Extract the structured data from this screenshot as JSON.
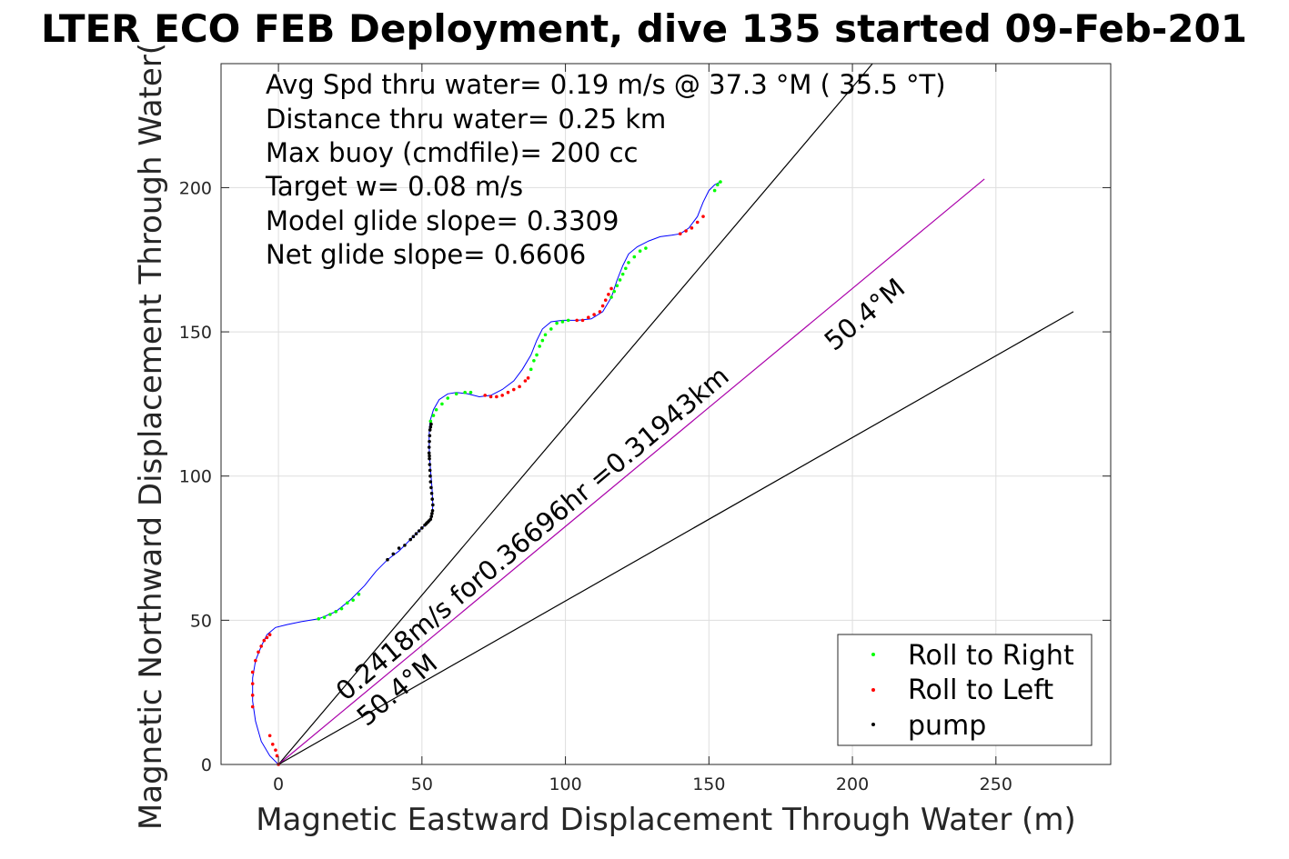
{
  "chart_data": {
    "type": "scatter",
    "title": "LTER ECO FEB Deployment, dive 135 started 09-Feb-201",
    "xlabel": "Magnetic Eastward Displacement Through Water (m)",
    "ylabel": "Magnetic Northward Displacement Through Water(",
    "xlim": [
      -20,
      290
    ],
    "ylim": [
      0,
      243
    ],
    "xticks": [
      0,
      50,
      100,
      150,
      200,
      250
    ],
    "yticks": [
      0,
      50,
      100,
      150,
      200
    ],
    "grid": true,
    "annotations": [
      "Avg Spd thru water=  0.19 m/s @  37.3 °M ( 35.5 °T)",
      "Distance thru water=  0.25 km",
      "Max buoy (cmdfile)= 200 cc",
      "Target w= 0.08 m/s",
      "Model glide slope= 0.3309",
      "Net glide slope= 0.6606"
    ],
    "line_labels": {
      "upper_heading": "50.4°M",
      "lower_heading": "50.4°M",
      "current": "0.2418m/s for0.36696hr =0.31943km"
    },
    "legend": {
      "position": "bottom-right",
      "entries": [
        {
          "label": "Roll to Right",
          "color": "#00ff00"
        },
        {
          "label": "Roll to Left",
          "color": "#ff0000"
        },
        {
          "label": "pump",
          "color": "#000000"
        }
      ]
    },
    "colors": {
      "track": "#0000ff",
      "current_line": "#aa00aa",
      "heading_lines": "#000000"
    },
    "reference_lines": [
      {
        "name": "heading-line-upper",
        "x": [
          0,
          207
        ],
        "y": [
          0,
          243
        ]
      },
      {
        "name": "current-line",
        "x": [
          0,
          246
        ],
        "y": [
          0,
          203
        ]
      },
      {
        "name": "heading-line-lower",
        "x": [
          0,
          277
        ],
        "y": [
          0,
          157
        ]
      }
    ],
    "track": {
      "x": [
        0,
        -3,
        -6,
        -8,
        -9,
        -9,
        -8,
        -6,
        -4,
        -1,
        3,
        8,
        14,
        20,
        25,
        30,
        34,
        38,
        42,
        46,
        49,
        51,
        52.5,
        53.5,
        53.8,
        53.5,
        53,
        52.6,
        52.5,
        52.8,
        54,
        56,
        59,
        62,
        66,
        70,
        74,
        78,
        82,
        85,
        88,
        90,
        92,
        95,
        99,
        104,
        109,
        113,
        116,
        118,
        120,
        122,
        125,
        129,
        133,
        137,
        140,
        143,
        146,
        148,
        150,
        152,
        154
      ],
      "y": [
        0,
        3,
        8,
        15,
        22,
        30,
        36,
        41,
        45,
        47.5,
        48.5,
        49.5,
        50.5,
        53,
        57,
        62,
        67,
        71,
        74,
        78,
        81,
        83,
        84,
        86,
        90,
        96,
        102,
        108,
        114,
        119,
        123,
        126.5,
        128.5,
        129,
        128.5,
        127.5,
        128,
        130,
        133,
        137,
        142,
        147,
        151,
        153.5,
        154,
        154,
        154.5,
        157,
        162,
        168,
        173,
        177,
        179.5,
        181.5,
        183,
        183.5,
        184,
        186,
        190,
        195,
        199,
        201,
        202
      ]
    },
    "roll_right": {
      "x": [
        14,
        16,
        18,
        20,
        22,
        24,
        26,
        28,
        53,
        54,
        55,
        57,
        59,
        62,
        65,
        67,
        88,
        89,
        90,
        91,
        92,
        93,
        95,
        97,
        99,
        101,
        116,
        117,
        118,
        119,
        120,
        121,
        122,
        124,
        126,
        128,
        152,
        153,
        154
      ],
      "y": [
        50.5,
        51,
        52,
        53,
        54,
        56,
        57,
        59,
        119,
        121,
        123,
        125,
        127,
        128.5,
        129,
        129,
        137,
        140,
        142,
        145,
        147,
        149,
        151,
        153,
        153.5,
        154,
        162,
        164,
        166,
        168,
        170,
        172,
        174,
        176,
        178,
        179,
        199,
        201,
        202
      ]
    },
    "roll_left": {
      "x": [
        -9,
        -9,
        -9,
        -9,
        -8,
        -7,
        -6,
        -5,
        -4,
        -3,
        -3,
        -2,
        -1,
        -0.5,
        0,
        72,
        74,
        76,
        78,
        80,
        82,
        84,
        86,
        87,
        104,
        106,
        108,
        110,
        112,
        113,
        114,
        115,
        116,
        140,
        142,
        144,
        146,
        148
      ],
      "y": [
        20,
        24,
        28,
        32,
        36,
        39,
        41,
        43,
        44,
        45,
        10,
        7,
        5,
        3,
        0,
        128,
        127.5,
        127.5,
        128,
        129,
        130,
        131,
        133,
        134,
        154,
        154,
        155,
        156,
        157,
        159,
        161,
        163,
        165,
        184,
        185,
        186,
        188,
        190
      ]
    },
    "pump": {
      "x": [
        38,
        40,
        42,
        44,
        46,
        47,
        48,
        49,
        50,
        51,
        51.5,
        52,
        52.5,
        53,
        53.3,
        53.5,
        53.7,
        53.8,
        53.6,
        53.4,
        53.2,
        53,
        52.9,
        52.8,
        52.7,
        52.6,
        52.6,
        52.5,
        52.5,
        52.6,
        52.7,
        52.8,
        53,
        53.2
      ],
      "y": [
        71,
        73,
        75,
        76,
        78,
        79,
        80,
        81,
        82,
        83,
        83.5,
        84,
        84.5,
        85,
        86,
        87,
        88,
        90,
        92,
        94,
        96,
        98,
        100,
        102,
        104,
        106,
        107,
        108,
        110,
        112,
        114,
        116,
        117,
        118
      ]
    }
  }
}
